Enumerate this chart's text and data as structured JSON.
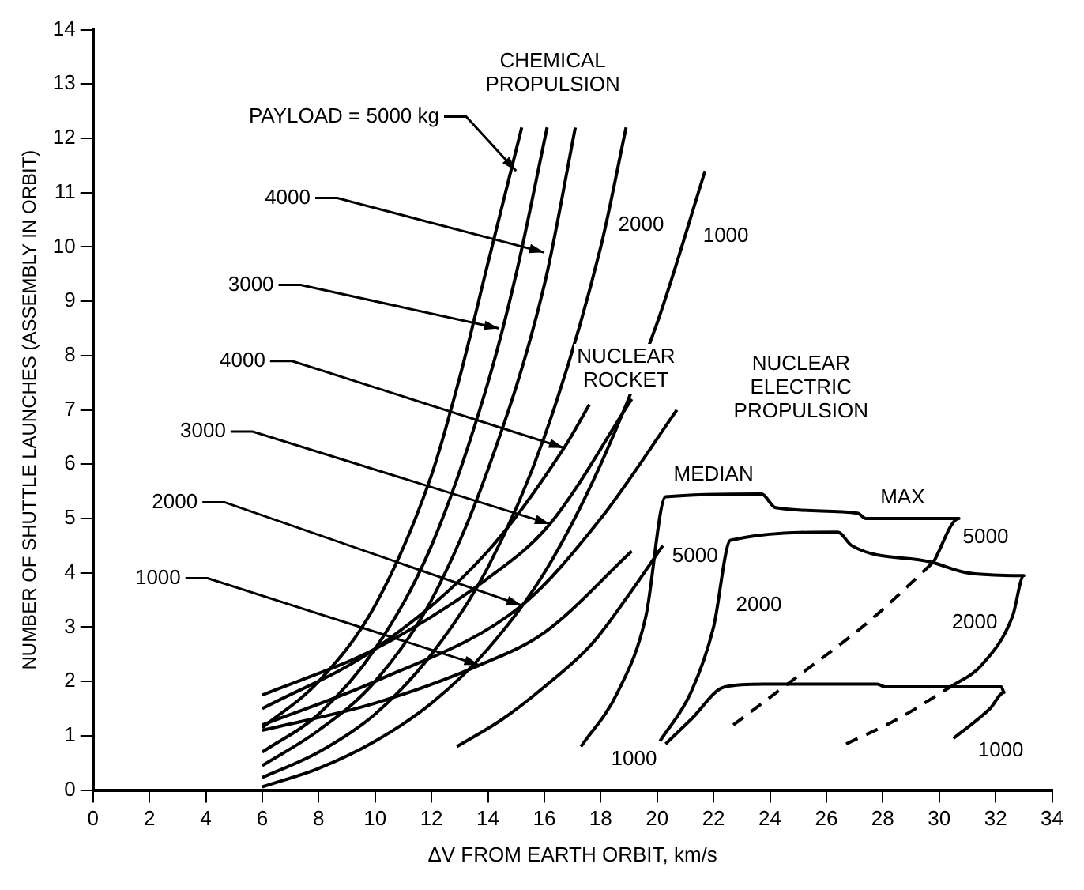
{
  "chart_data": {
    "type": "line",
    "xlabel": "ΔV FROM EARTH ORBIT, km/s",
    "ylabel": "NUMBER OF SHUTTLE LAUNCHES (ASSEMBLY IN ORBIT)",
    "xlim": [
      0,
      34
    ],
    "xticks": [
      0,
      2,
      4,
      6,
      8,
      10,
      12,
      14,
      16,
      18,
      20,
      22,
      24,
      26,
      28,
      30,
      32,
      34
    ],
    "ylim": [
      0,
      14
    ],
    "yticks": [
      0,
      1,
      2,
      3,
      4,
      5,
      6,
      7,
      8,
      9,
      10,
      11,
      12,
      13,
      14
    ],
    "grid": false,
    "legend": false,
    "marker": "none",
    "series": [
      {
        "color": "#000000",
        "x": [
          6,
          8,
          10,
          12,
          13,
          14,
          15.2
        ],
        "values": [
          1.15,
          2.0,
          3.4,
          5.8,
          7.6,
          9.7,
          12.2
        ]
      },
      {
        "color": "#000000",
        "x": [
          6,
          8,
          10,
          12,
          14,
          15,
          16.1
        ],
        "values": [
          0.7,
          1.4,
          2.6,
          4.5,
          7.5,
          9.5,
          12.2
        ]
      },
      {
        "color": "#000000",
        "x": [
          6,
          8,
          10,
          12,
          14,
          16,
          17.1
        ],
        "values": [
          0.45,
          1.1,
          2.0,
          3.5,
          5.9,
          9.3,
          12.2
        ]
      },
      {
        "color": "#000000",
        "x": [
          6,
          8,
          10,
          12,
          14,
          16,
          18,
          18.9
        ],
        "values": [
          0.23,
          0.7,
          1.4,
          2.5,
          4.1,
          6.5,
          10,
          12.2
        ]
      },
      {
        "color": "#000000",
        "x": [
          6,
          8,
          10,
          12,
          14,
          16,
          18,
          20,
          21.7
        ],
        "values": [
          0.06,
          0.4,
          0.9,
          1.6,
          2.6,
          4.0,
          6.0,
          8.6,
          11.4
        ]
      },
      {
        "color": "#000000",
        "x": [
          6,
          10,
          14,
          16.7,
          17.6
        ],
        "values": [
          1.5,
          2.6,
          4.4,
          6.3,
          7.1
        ]
      },
      {
        "color": "#000000",
        "x": [
          6,
          10,
          14,
          16.2,
          19.1
        ],
        "values": [
          1.75,
          2.6,
          3.9,
          4.9,
          7.2
        ]
      },
      {
        "color": "#000000",
        "x": [
          6,
          10,
          15.2,
          18,
          20.7
        ],
        "values": [
          1.2,
          2.0,
          3.4,
          5.0,
          7.0
        ]
      },
      {
        "color": "#000000",
        "x": [
          6,
          10,
          13.7,
          16,
          19.1
        ],
        "values": [
          1.1,
          1.6,
          2.3,
          2.9,
          4.4
        ]
      },
      {
        "color": "#000000",
        "x": [
          12.9,
          14.5,
          16,
          17.7,
          19,
          20.2
        ],
        "values": [
          0.8,
          1.3,
          1.9,
          2.7,
          3.6,
          4.5
        ]
      },
      {
        "color": "#000000",
        "x": [
          17.3,
          18.6,
          19.6,
          20.3,
          23.7,
          24.2,
          27.1,
          27.4,
          30.7,
          29.8
        ],
        "values": [
          0.8,
          1.8,
          3.2,
          5.4,
          5.45,
          5.2,
          5.1,
          5.0,
          5.0,
          4.2
        ]
      },
      {
        "color": "#000000",
        "x": [
          20.1,
          21.2,
          22.0,
          22.6,
          26.4,
          26.9,
          29.7,
          31.0,
          33.0,
          32.6,
          31.5,
          30.4
        ],
        "values": [
          0.9,
          1.8,
          3.0,
          4.6,
          4.75,
          4.5,
          4.2,
          4.0,
          3.95,
          3.2,
          2.3,
          1.9
        ]
      },
      {
        "color": "#000000",
        "x": [
          20.3,
          21.2,
          22.4,
          23.8,
          27.8,
          28.1,
          32.2,
          32.3,
          31.8,
          30.5
        ],
        "values": [
          0.85,
          1.3,
          1.9,
          1.95,
          1.95,
          1.9,
          1.9,
          1.8,
          1.5,
          0.95
        ]
      },
      {
        "color": "#000000",
        "line_style": "dashed",
        "x": [
          22.7,
          25.0,
          27.5,
          29.8
        ],
        "values": [
          1.2,
          2.1,
          3.1,
          4.2
        ]
      },
      {
        "color": "#000000",
        "line_style": "dashed",
        "x": [
          26.7,
          28.5,
          30.4
        ],
        "values": [
          0.85,
          1.3,
          1.9
        ]
      }
    ],
    "annotations": [
      "CHEMICAL\nPROPULSION",
      "NUCLEAR\nROCKET",
      "NUCLEAR\nELECTRIC\nPROPULSION",
      {
        "text": "2000",
        "x": 18.2,
        "y": 10.4
      },
      {
        "text": "1000",
        "x": 21.2,
        "y": 10.2
      },
      {
        "text": "MEDIAN",
        "x": 22,
        "y": 5.43
      },
      {
        "text": "MAX",
        "x": 28.7,
        "y": 5.0
      },
      {
        "text": "5000",
        "x": 20.0,
        "y": 4.3
      },
      {
        "text": "2000",
        "x": 22.15,
        "y": 3.4
      },
      {
        "text": "5000",
        "x": 30.3,
        "y": 4.6
      },
      {
        "text": "2000",
        "x": 32.6,
        "y": 3.2
      },
      {
        "text": "1000",
        "x": 20.3,
        "y": 0.85
      },
      {
        "text": "1000",
        "x": 30.5,
        "y": 0.95
      },
      {
        "text": "PAYLOAD = 5000 kg",
        "x": 15.0,
        "y": 11.4
      },
      {
        "text": "4000",
        "x": 16.0,
        "y": 9.9
      },
      {
        "text": "3000",
        "x": 14.4,
        "y": 8.5
      },
      {
        "text": "4000",
        "x": 16.7,
        "y": 6.3
      },
      {
        "text": "3000",
        "x": 16.2,
        "y": 4.9
      },
      {
        "text": "2000",
        "x": 15.2,
        "y": 3.4
      },
      {
        "text": "1000",
        "x": 13.7,
        "y": 2.3
      }
    ]
  }
}
